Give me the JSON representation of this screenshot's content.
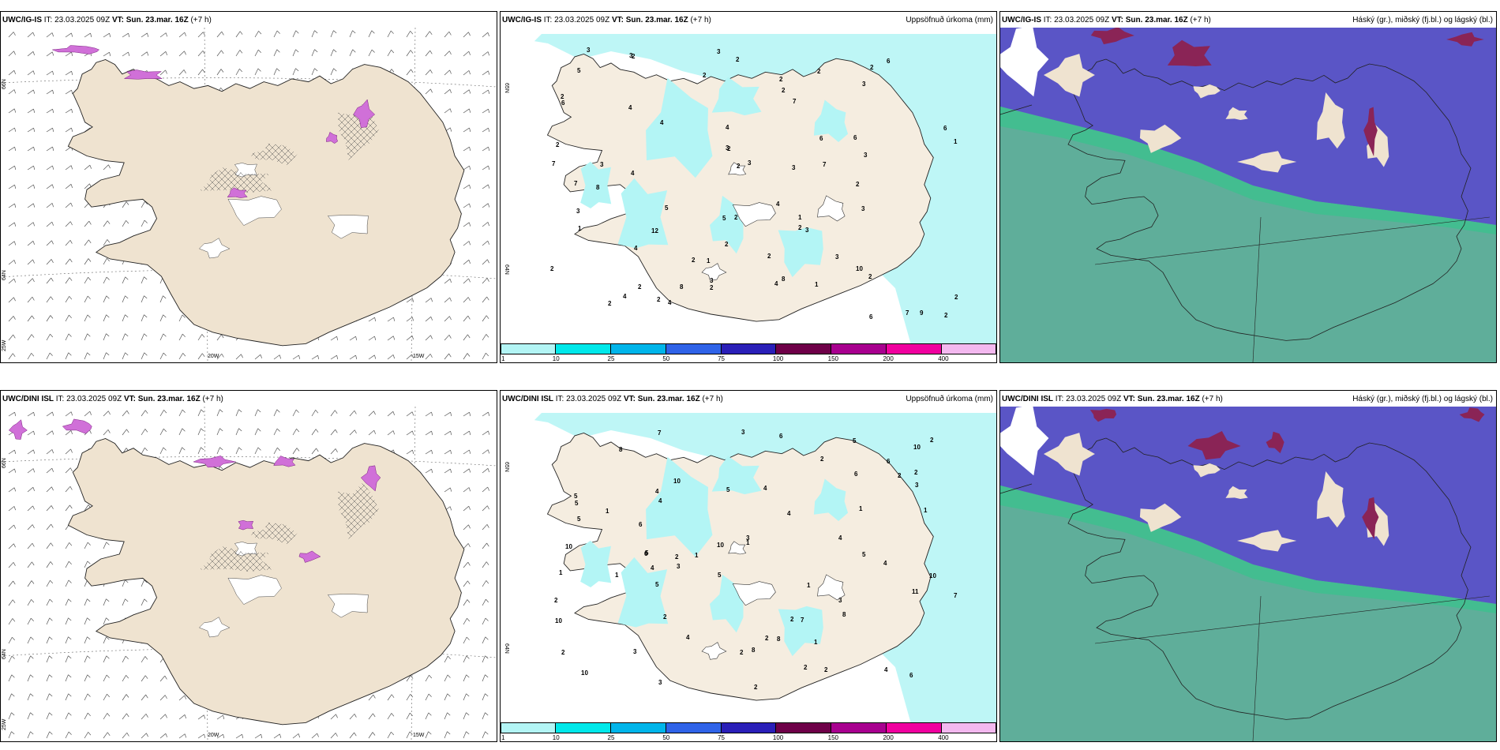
{
  "panels": [
    {
      "model": "UWC/IG-IS",
      "it_label": "IT:",
      "it_value": "23.03.2025 09Z",
      "vt_label": "VT:",
      "vt_value": "Sun. 23.mar. 16Z",
      "lead": "(+7 h)",
      "title": "",
      "type": "wind",
      "axis_labels": [
        "66N",
        "64N",
        "25W",
        "20W",
        "15W"
      ]
    },
    {
      "model": "UWC/IG-IS",
      "it_label": "IT:",
      "it_value": "23.03.2025 09Z",
      "vt_label": "VT:",
      "vt_value": "Sun. 23.mar. 16Z",
      "lead": "(+7 h)",
      "title": "Uppsöfnuð úrkoma (mm)",
      "type": "precip",
      "axis_labels": [
        "65N",
        "64N"
      ],
      "values": [
        "7",
        "2",
        "6",
        "2",
        "7",
        "8",
        "7",
        "4",
        "6",
        "3",
        "3",
        "3",
        "6",
        "4",
        "4",
        "8",
        "7",
        "4",
        "2",
        "3",
        "2",
        "2",
        "2",
        "2",
        "1",
        "2",
        "4",
        "4",
        "3",
        "6",
        "3",
        "2",
        "2",
        "1",
        "3",
        "5",
        "8",
        "4",
        "2",
        "7",
        "2",
        "1",
        "2",
        "12",
        "3",
        "2",
        "3",
        "4",
        "6",
        "10",
        "3",
        "2",
        "1",
        "2",
        "2",
        "3",
        "2",
        "2",
        "5",
        "4",
        "6",
        "2",
        "9",
        "3",
        "1",
        "5",
        "2",
        "2",
        "2",
        "3",
        "3",
        "2",
        "2"
      ]
    },
    {
      "model": "UWC/IG-IS",
      "it_label": "IT:",
      "it_value": "23.03.2025 09Z",
      "vt_label": "VT:",
      "vt_value": "Sun. 23.mar. 16Z",
      "lead": "(+7 h)",
      "title": "Háský (gr.), miðský (fj.bl.) og lágský (bl.)",
      "type": "cloud"
    },
    {
      "model": "UWC/DINI ISL",
      "it_label": "IT:",
      "it_value": "23.03.2025 09Z",
      "vt_label": "VT:",
      "vt_value": "Sun. 23.mar. 16Z",
      "lead": "(+7 h)",
      "title": "",
      "type": "wind",
      "axis_labels": [
        "66N",
        "64N",
        "25W",
        "20W",
        "15W"
      ]
    },
    {
      "model": "UWC/DINI ISL",
      "it_label": "IT:",
      "it_value": "23.03.2025 09Z",
      "vt_label": "VT:",
      "vt_value": "Sun. 23.mar. 16Z",
      "lead": "(+7 h)",
      "title": "Uppsöfnuð úrkoma (mm)",
      "type": "precip",
      "axis_labels": [
        "65N",
        "64N"
      ],
      "values": [
        "6",
        "1",
        "1",
        "2",
        "1",
        "1",
        "8",
        "10",
        "8",
        "7",
        "5",
        "5",
        "2",
        "4",
        "4",
        "6",
        "5",
        "1",
        "4",
        "5",
        "5",
        "11",
        "10",
        "4",
        "5",
        "8",
        "2",
        "2",
        "1",
        "1",
        "10",
        "4",
        "5",
        "6",
        "7",
        "5",
        "4",
        "4",
        "2",
        "2",
        "3",
        "3",
        "3",
        "2",
        "2",
        "7",
        "10",
        "1",
        "3",
        "10",
        "3",
        "2",
        "5",
        "6",
        "2",
        "4",
        "10",
        "3",
        "2",
        "6",
        "6",
        "3",
        "2",
        "8",
        "4",
        "10",
        "2",
        "2",
        "1"
      ]
    }
  ],
  "colorbar": {
    "labels": [
      "1",
      "10",
      "25",
      "50",
      "75",
      "100",
      "150",
      "200",
      "400"
    ],
    "colors": [
      "#b3f5f5",
      "#00e8ea",
      "#00b5ea",
      "#2f63e8",
      "#2a1fb8",
      "#6e0048",
      "#a8008f",
      "#f0009f",
      "#f3b8ef"
    ]
  },
  "colors": {
    "land": "#efe3d0",
    "land_beige": "#f5ede0",
    "precip_light": "#b3f5f5",
    "ocean_green": "#5fae9a",
    "high_cloud": "#8a2456",
    "mid_cloud": "#5a55c6",
    "low_cloud_green": "#3ec08e",
    "snow_magenta": "#d070d8"
  }
}
